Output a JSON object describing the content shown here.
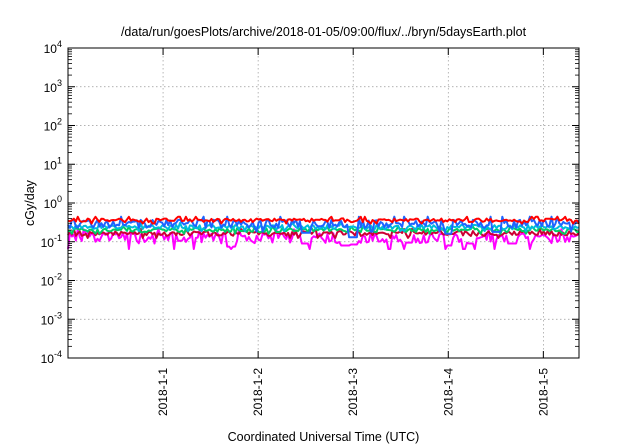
{
  "chart_data": {
    "type": "line",
    "title": "/data/run/goesPlots/archive/2018-01-05/09:00/flux/../bryn/5daysEarth.plot",
    "xlabel": "Coordinated Universal Time (UTC)",
    "ylabel": "cGy/day",
    "yscale": "log",
    "ylim": [
      0.0001,
      10000
    ],
    "y_ticks": [
      {
        "base": "10",
        "exp": "-4"
      },
      {
        "base": "10",
        "exp": "-3"
      },
      {
        "base": "10",
        "exp": "-2"
      },
      {
        "base": "10",
        "exp": "-1"
      },
      {
        "base": "10",
        "exp": "0"
      },
      {
        "base": "10",
        "exp": "1"
      },
      {
        "base": "10",
        "exp": "2"
      },
      {
        "base": "10",
        "exp": "3"
      },
      {
        "base": "10",
        "exp": "4"
      }
    ],
    "x_range": [
      "2017-12-31T00:00",
      "2018-01-05T09:00"
    ],
    "x_ticks": [
      {
        "label": "2018-1-1",
        "date": "2018-01-01T00:00"
      },
      {
        "label": "2018-1-2",
        "date": "2018-01-02T00:00"
      },
      {
        "label": "2018-1-3",
        "date": "2018-01-03T00:00"
      },
      {
        "label": "2018-1-4",
        "date": "2018-01-04T00:00"
      },
      {
        "label": "2018-1-5",
        "date": "2018-01-05T00:00"
      }
    ],
    "grid": true,
    "series": [
      {
        "color": "#ff00ff",
        "base": 0.13,
        "noise": 0.05,
        "dips": [
          [
            "2018-01-01T17:00",
            0.075
          ],
          [
            "2018-01-02T12:00",
            0.09
          ],
          [
            "2018-01-02T22:00",
            0.08
          ],
          [
            "2018-01-03T00:00",
            0.085
          ],
          [
            "2018-01-03T14:00",
            0.095
          ],
          [
            "2018-01-04T00:00",
            0.08
          ],
          [
            "2018-01-04T06:00",
            0.09
          ],
          [
            "2018-01-04T16:00",
            0.09
          ]
        ]
      },
      {
        "color": "#cc0033",
        "base": 0.165,
        "noise": 0.03,
        "dips": []
      },
      {
        "color": "#00cc66",
        "base": 0.2,
        "noise": 0.03,
        "dips": []
      },
      {
        "color": "#00bbdd",
        "base": 0.24,
        "noise": 0.04,
        "dips": []
      },
      {
        "color": "#1e64ff",
        "base": 0.3,
        "noise": 0.09,
        "dips": [
          [
            "2018-01-03T00:00",
            0.13
          ],
          [
            "2018-01-04T00:00",
            0.16
          ],
          [
            "2018-01-02T12:00",
            0.17
          ],
          [
            "2018-01-04T12:00",
            0.18
          ]
        ]
      },
      {
        "color": "#ff0000",
        "base": 0.36,
        "noise": 0.05,
        "dips": []
      }
    ]
  }
}
